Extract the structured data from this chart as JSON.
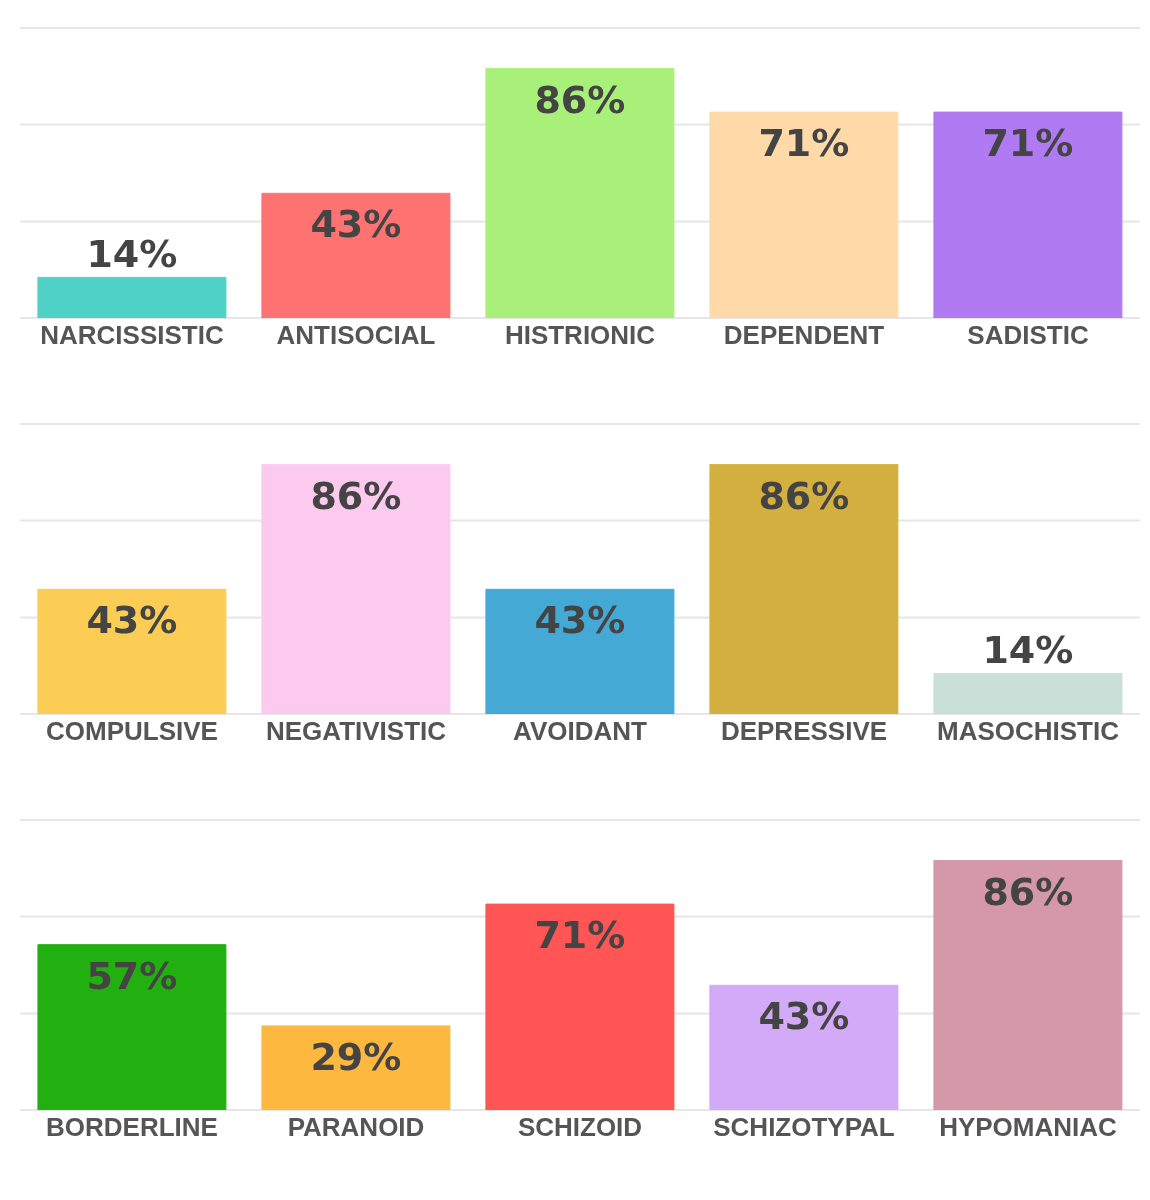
{
  "chart_data": [
    {
      "type": "bar",
      "categories": [
        "NARCISSISTIC",
        "ANTISOCIAL",
        "HISTRIONIC",
        "DEPENDENT",
        "SADISTIC"
      ],
      "values": [
        14,
        43,
        86,
        71,
        71
      ],
      "colors": [
        "#4fd1c5",
        "#ff7272",
        "#a8f07a",
        "#ffd9a8",
        "#b07af2"
      ],
      "value_labels": [
        "14%",
        "43%",
        "86%",
        "71%",
        "71%"
      ],
      "ylim": [
        0,
        100
      ],
      "yticks": [
        {
          "value": 0,
          "label": null
        },
        {
          "value": 33.3,
          "label": null
        },
        {
          "value": 66.7,
          "label": null
        },
        {
          "value": 100,
          "label": null
        }
      ],
      "grid": "y",
      "tick_labels": "x",
      "legend": false
    },
    {
      "type": "bar",
      "categories": [
        "COMPULSIVE",
        "NEGATIVISTIC",
        "AVOIDANT",
        "DEPRESSIVE",
        "MASOCHISTIC"
      ],
      "values": [
        43,
        86,
        43,
        86,
        14
      ],
      "colors": [
        "#fbcd55",
        "#fbcaee",
        "#45a9d6",
        "#d4b040",
        "#c8e0d8"
      ],
      "value_labels": [
        "43%",
        "86%",
        "43%",
        "86%",
        "14%"
      ],
      "ylim": [
        0,
        100
      ],
      "yticks": [
        {
          "value": 0,
          "label": null
        },
        {
          "value": 33.3,
          "label": null
        },
        {
          "value": 66.7,
          "label": null
        },
        {
          "value": 100,
          "label": null
        }
      ],
      "grid": "y",
      "tick_labels": "x",
      "legend": false
    },
    {
      "type": "bar",
      "categories": [
        "BORDERLINE",
        "PARANOID",
        "SCHIZOID",
        "SCHIZOTYPAL",
        "HYPOMANIAC"
      ],
      "values": [
        57,
        29,
        71,
        43,
        86
      ],
      "colors": [
        "#22b010",
        "#fdb840",
        "#ff5555",
        "#d2aaf8",
        "#d498aa"
      ],
      "value_labels": [
        "57%",
        "29%",
        "71%",
        "43%",
        "86%"
      ],
      "ylim": [
        0,
        100
      ],
      "yticks": [
        {
          "value": 0,
          "label": null
        },
        {
          "value": 33.3,
          "label": null
        },
        {
          "value": 66.7,
          "label": null
        },
        {
          "value": 100,
          "label": null
        }
      ],
      "grid": "y",
      "tick_labels": "x",
      "legend": false
    }
  ]
}
